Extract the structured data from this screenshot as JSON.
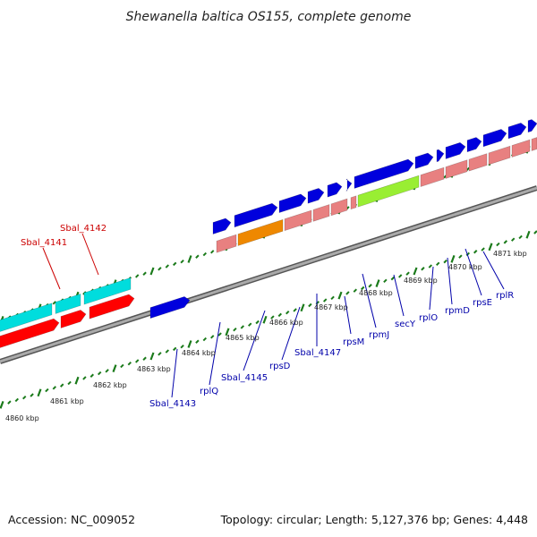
{
  "title": "Shewanella baltica OS155, complete genome",
  "accession": "Accession: NC_009052",
  "summary": "Topology: circular; Length: 5,127,376 bp; Genes: 4,448",
  "colors": {
    "backbone": "#888888",
    "ticks": "#1a7a1a",
    "gene_forward": "#0000dd",
    "gene_reverse": "#ff0000",
    "cds_forward": "#00dddd",
    "rna": "#e88080",
    "orange": "#ee8800",
    "green": "#99ee33",
    "label_blue": "#0000aa",
    "label_red": "#cc0000"
  },
  "kbp_labels": [
    "4860 kbp",
    "4861 kbp",
    "4862 kbp",
    "4863 kbp",
    "4864 kbp",
    "4865 kbp",
    "4866 kbp",
    "4867 kbp",
    "4868 kbp",
    "4869 kbp",
    "4870 kbp",
    "4871 kbp"
  ],
  "gene_labels": {
    "red": [
      "Sbal_4141",
      "Sbal_4142"
    ],
    "blue": [
      "Sbal_4143",
      "rplQ",
      "Sbal_4145",
      "rpsD",
      "Sbal_4147",
      "rpsM",
      "rpmJ",
      "secY",
      "rplO",
      "rpmD",
      "rpsE",
      "rplR"
    ]
  }
}
